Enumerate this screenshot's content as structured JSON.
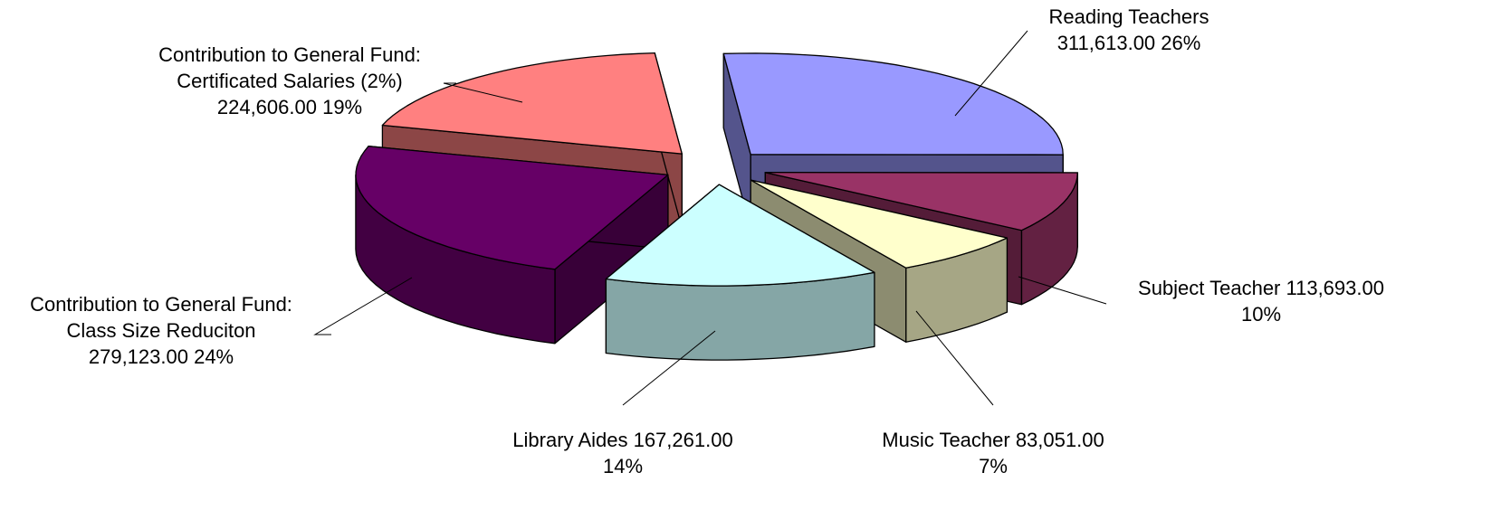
{
  "chart_data": {
    "type": "pie",
    "title": "",
    "style": "3d-exploded",
    "categories": [
      "Reading Teachers",
      "Subject Teacher",
      "Music Teacher",
      "Library Aides",
      "Contribution to General Fund: Class Size Reduciton",
      "Contribution to General Fund: Certificated Salaries (2%)"
    ],
    "values": [
      311613.0,
      113693.0,
      83051.0,
      167261.0,
      279123.0,
      224606.0
    ],
    "value_labels": [
      "311,613.00",
      "113,693.00",
      "83,051.00",
      "167,261.00",
      "279,123.00",
      "224,606.00"
    ],
    "percent_labels": [
      "26%",
      "10%",
      "7%",
      "14%",
      "24%",
      "19%"
    ],
    "colors": [
      "#9999FF",
      "#993366",
      "#FFFFCC",
      "#CCFFFF",
      "#660066",
      "#FF8080"
    ],
    "labels": [
      {
        "lines": [
          "Reading Teachers",
          "311,613.00  26%"
        ]
      },
      {
        "lines": [
          "Subject Teacher  113,693.00",
          "10%"
        ]
      },
      {
        "lines": [
          "Music Teacher  83,051.00",
          "7%"
        ]
      },
      {
        "lines": [
          "Library Aides  167,261.00",
          "14%"
        ]
      },
      {
        "lines": [
          "Contribution to General Fund:",
          "Class Size Reduciton",
          "279,123.00  24%"
        ]
      },
      {
        "lines": [
          "Contribution to General Fund:",
          "Certificated Salaries (2%)",
          "224,606.00  19%"
        ]
      }
    ]
  }
}
